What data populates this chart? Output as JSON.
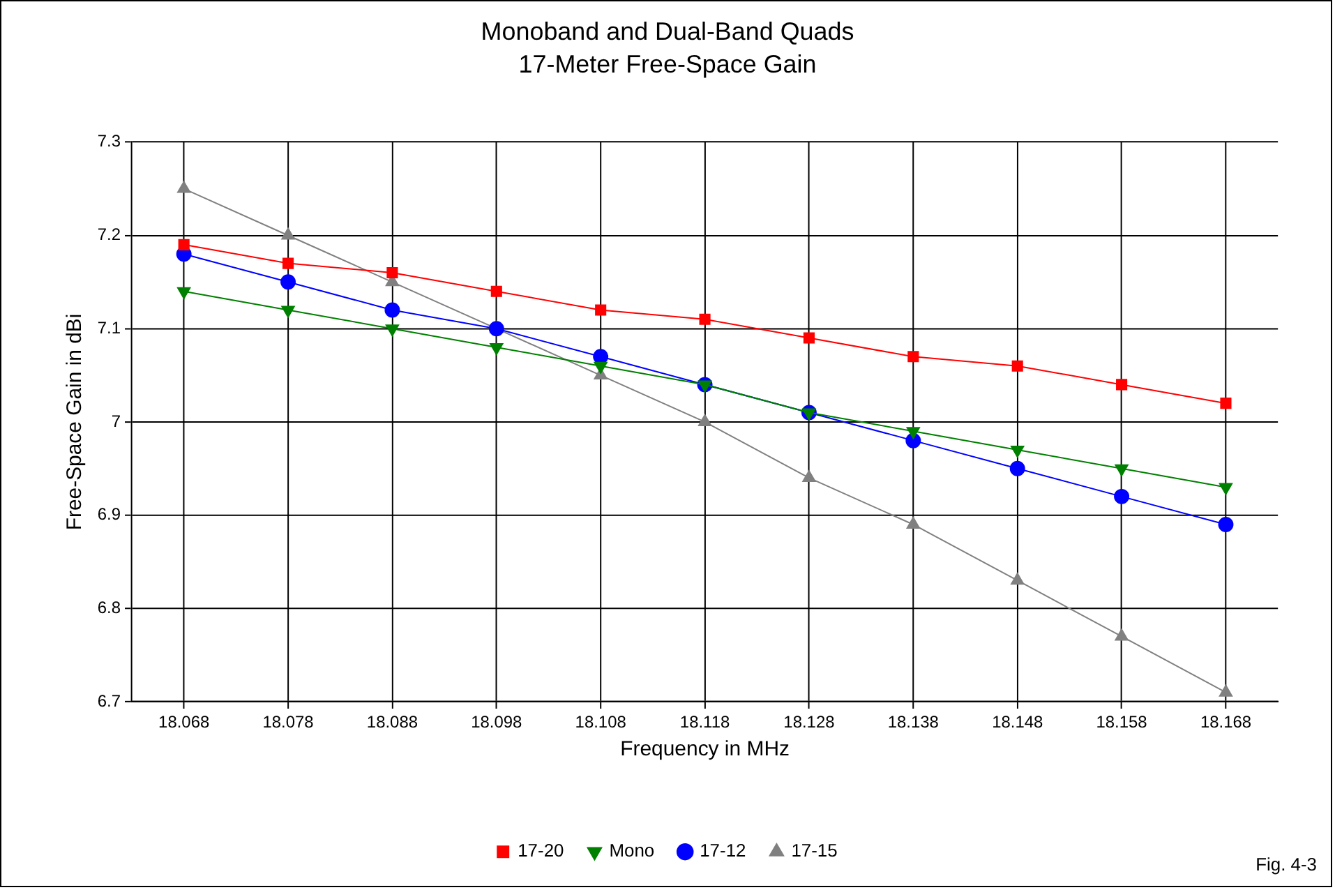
{
  "chart_data": {
    "type": "line",
    "title": "Monoband and Dual-Band Quads",
    "subtitle": "17-Meter Free-Space Gain",
    "xlabel": "Frequency in MHz",
    "ylabel": "Free-Space Gain in dBi",
    "annotations": [
      "Fig. 4-3"
    ],
    "categories": [
      "18.068",
      "18.078",
      "18.088",
      "18.098",
      "18.108",
      "18.118",
      "18.128",
      "18.138",
      "18.148",
      "18.158",
      "18.168"
    ],
    "ylim": [
      6.7,
      7.3
    ],
    "yticks": [
      6.7,
      6.8,
      6.9,
      7,
      7.1,
      7.2,
      7.3
    ],
    "grid": true,
    "legend": "bottom",
    "series": [
      {
        "name": "17-20",
        "color": "#ff0000",
        "marker": "square",
        "values": [
          7.19,
          7.17,
          7.16,
          7.14,
          7.12,
          7.11,
          7.09,
          7.07,
          7.06,
          7.04,
          7.02
        ]
      },
      {
        "name": "Mono",
        "color": "#008000",
        "marker": "triangle-down",
        "values": [
          7.14,
          7.12,
          7.1,
          7.08,
          7.06,
          7.04,
          7.01,
          6.99,
          6.97,
          6.95,
          6.93
        ]
      },
      {
        "name": "17-12",
        "color": "#0000ff",
        "marker": "circle",
        "values": [
          7.18,
          7.15,
          7.12,
          7.1,
          7.07,
          7.04,
          7.01,
          6.98,
          6.95,
          6.92,
          6.89
        ]
      },
      {
        "name": "17-15",
        "color": "#808080",
        "marker": "triangle",
        "values": [
          7.25,
          7.2,
          7.15,
          7.1,
          7.05,
          7.0,
          6.94,
          6.89,
          6.83,
          6.77,
          6.71
        ]
      }
    ]
  }
}
